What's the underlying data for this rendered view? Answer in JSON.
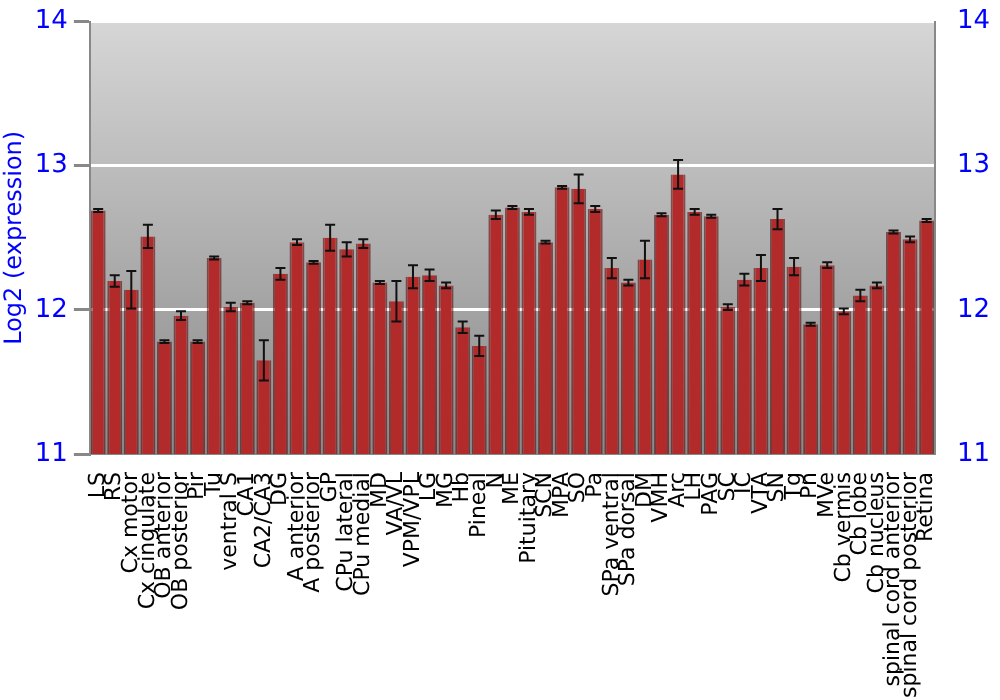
{
  "chart_data": {
    "type": "bar",
    "ylabel": "Log2 (expression)",
    "categories": [
      "LS",
      "RS",
      "Cx motor",
      "Cx cingulate",
      "OB anterior",
      "OB posterior",
      "Pir",
      "Tu",
      "ventral S",
      "CA1",
      "CA2/CA3",
      "DG",
      "A anterior",
      "A posterior",
      "GP",
      "CPu lateral",
      "CPu medial",
      "MD",
      "VA/VL",
      "VPM/VPL",
      "LG",
      "MG",
      "Hb",
      "Pineal",
      "N",
      "ME",
      "Pituitary",
      "SCN",
      "MPA",
      "SO",
      "Pa",
      "SPa ventral",
      "SPa dorsal",
      "DM",
      "VMH",
      "Arc",
      "LH",
      "PAG",
      "SC",
      "IC",
      "VTA",
      "SN",
      "Tg",
      "Pn",
      "MVe",
      "Cb vermis",
      "Cb lobe",
      "Cb nucleus",
      "spinal cord anterior",
      "spinal cord posterior",
      "Retina"
    ],
    "values": [
      12.69,
      12.2,
      12.14,
      12.51,
      11.78,
      11.96,
      11.78,
      12.36,
      12.02,
      12.05,
      11.65,
      12.25,
      12.47,
      12.33,
      12.5,
      12.42,
      12.46,
      12.19,
      12.06,
      12.23,
      12.24,
      12.17,
      11.88,
      11.75,
      12.66,
      12.71,
      12.68,
      12.47,
      12.85,
      12.84,
      12.7,
      12.29,
      12.19,
      12.35,
      12.66,
      12.94,
      12.68,
      12.65,
      12.02,
      12.21,
      12.29,
      12.63,
      12.3,
      11.9,
      12.31,
      11.99,
      12.1,
      12.17,
      12.54,
      12.49,
      12.62
    ],
    "errors": [
      0.01,
      0.04,
      0.13,
      0.08,
      0.01,
      0.03,
      0.01,
      0.01,
      0.03,
      0.01,
      0.14,
      0.04,
      0.02,
      0.01,
      0.09,
      0.05,
      0.03,
      0.01,
      0.14,
      0.08,
      0.04,
      0.02,
      0.04,
      0.07,
      0.03,
      0.01,
      0.02,
      0.01,
      0.01,
      0.1,
      0.02,
      0.07,
      0.02,
      0.13,
      0.01,
      0.1,
      0.02,
      0.01,
      0.02,
      0.04,
      0.09,
      0.07,
      0.06,
      0.01,
      0.02,
      0.02,
      0.04,
      0.02,
      0.01,
      0.02,
      0.01
    ],
    "color": "#b22a2a",
    "ylim": [
      11,
      14
    ],
    "yticks": [
      11,
      12,
      13,
      14
    ],
    "y2lim": [
      11,
      14
    ],
    "y2ticks": [
      11,
      12,
      13,
      14
    ],
    "grid": "y",
    "legend": false
  }
}
